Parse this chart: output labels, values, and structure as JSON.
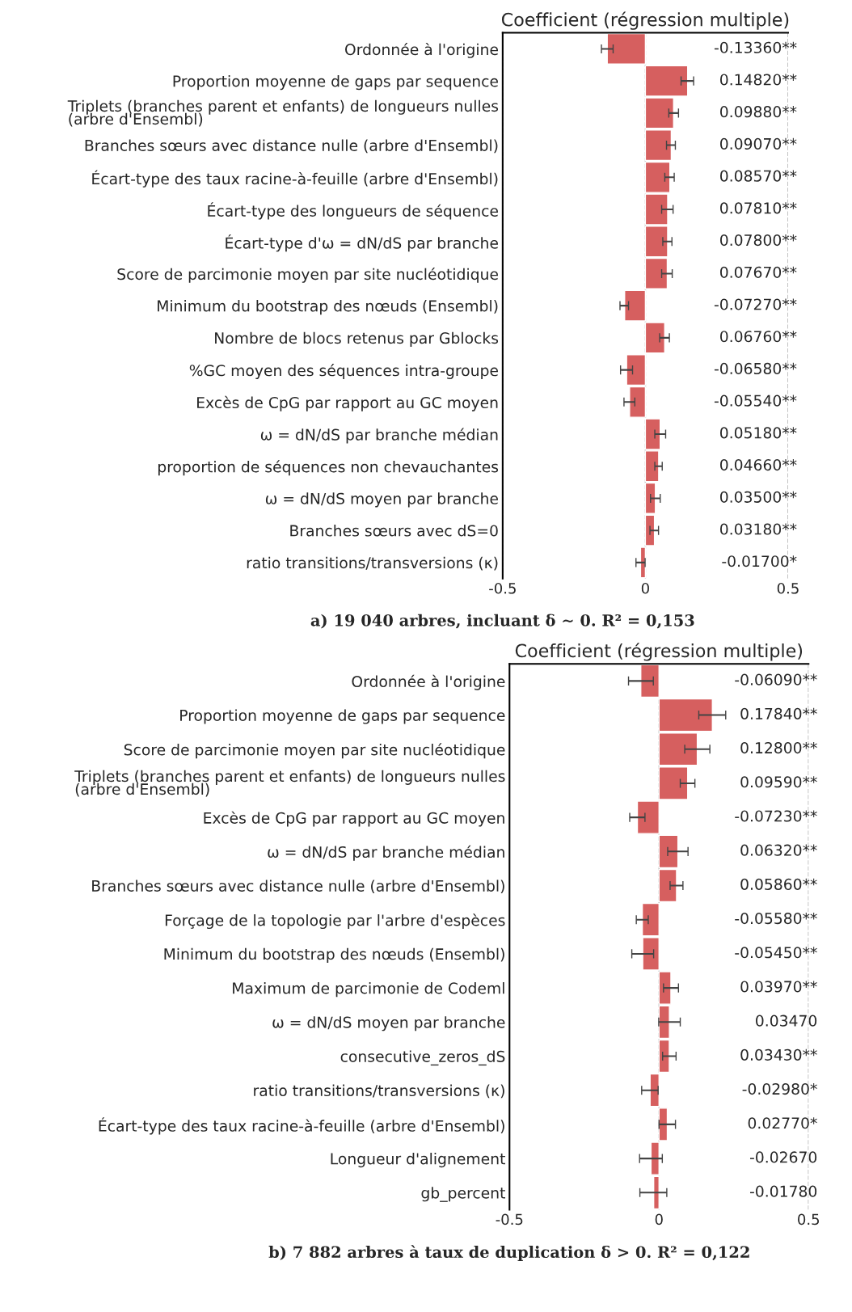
{
  "chart_data": [
    {
      "type": "bar",
      "orientation": "horizontal",
      "title": "Coefficient (régression multiple)",
      "annotations": [
        "a) 19 040 arbres, incluant δ ∼ 0. R² = 0,153"
      ],
      "categories": [
        "Ordonnée à l'origine",
        "Proportion moyenne de gaps par sequence",
        "Triplets (branches parent et enfants) de longueurs nulles\n(arbre d'Ensembl)",
        "Branches sœurs avec distance nulle (arbre d'Ensembl)",
        "Écart-type des taux racine-à-feuille (arbre d'Ensembl)",
        "Écart-type des longueurs de séquence",
        "Écart-type d'ω = dN/dS par branche",
        "Score de parcimonie moyen par site nucléotidique",
        "Minimum du bootstrap des nœuds (Ensembl)",
        "Nombre de blocs retenus par Gblocks",
        "%GC moyen des séquences intra-groupe",
        "Excès de CpG par rapport au GC moyen",
        "ω = dN/dS par branche médian",
        "proportion de séquences non chevauchantes",
        "ω = dN/dS moyen par branche",
        "Branches sœurs avec dS=0",
        "ratio transitions/transversions (κ)"
      ],
      "values": [
        -0.1336,
        0.1482,
        0.0988,
        0.0907,
        0.0857,
        0.0781,
        0.078,
        0.0767,
        -0.0727,
        0.0676,
        -0.0658,
        -0.0554,
        0.0518,
        0.0466,
        0.035,
        0.0318,
        -0.017
      ],
      "errors": [
        [
          -0.154,
          -0.113
        ],
        [
          0.125,
          0.169
        ],
        [
          0.082,
          0.116
        ],
        [
          0.074,
          0.105
        ],
        [
          0.068,
          0.101
        ],
        [
          0.057,
          0.097
        ],
        [
          0.061,
          0.093
        ],
        [
          0.057,
          0.094
        ],
        [
          -0.089,
          -0.059
        ],
        [
          0.05,
          0.084
        ],
        [
          -0.087,
          -0.045
        ],
        [
          -0.075,
          -0.037
        ],
        [
          0.033,
          0.071
        ],
        [
          0.033,
          0.059
        ],
        [
          0.018,
          0.052
        ],
        [
          0.016,
          0.046
        ],
        [
          -0.033,
          -0.001
        ]
      ],
      "value_labels": [
        "-0.13360**",
        "0.14820**",
        "0.09880**",
        "0.09070**",
        "0.08570**",
        "0.07810**",
        "0.07800**",
        "0.07670**",
        "-0.07270**",
        "0.06760**",
        "-0.06580**",
        "-0.05540**",
        "0.05180**",
        "0.04660**",
        "0.03500**",
        "0.03180**",
        "-0.01700*"
      ],
      "color": "#d65f5f",
      "xlim": [
        -0.5,
        0.5
      ],
      "xticks": [
        -0.5,
        0,
        0.5
      ],
      "grid": "x",
      "legend": false
    },
    {
      "type": "bar",
      "orientation": "horizontal",
      "title": "Coefficient (régression multiple)",
      "annotations": [
        "b) 7 882 arbres à taux de duplication δ > 0. R² = 0,122"
      ],
      "categories": [
        "Ordonnée à l'origine",
        "Proportion moyenne de gaps par sequence",
        "Score de parcimonie moyen par site nucléotidique",
        "Triplets (branches parent et enfants) de longueurs nulles\n(arbre d'Ensembl)",
        "Excès de CpG par rapport au GC moyen",
        "ω = dN/dS par branche médian",
        "Branches sœurs avec distance nulle (arbre d'Ensembl)",
        "Forçage de la topologie par l'arbre d'espèces",
        "Minimum du bootstrap des nœuds (Ensembl)",
        "Maximum de parcimonie de Codeml",
        "ω = dN/dS moyen par branche",
        "consecutive_zeros_dS",
        "ratio transitions/transversions (κ)",
        "Écart-type des taux racine-à-feuille (arbre d'Ensembl)",
        "Longueur d'alignement",
        "gb_percent"
      ],
      "values": [
        -0.0609,
        0.1784,
        0.128,
        0.0959,
        -0.0723,
        0.0632,
        0.0586,
        -0.0558,
        -0.0545,
        0.0397,
        0.0347,
        0.0343,
        -0.0298,
        0.0277,
        -0.0267,
        -0.0178
      ],
      "errors": [
        [
          -0.102,
          -0.019
        ],
        [
          0.133,
          0.223
        ],
        [
          0.086,
          0.17
        ],
        [
          0.071,
          0.12
        ],
        [
          -0.098,
          -0.047
        ],
        [
          0.029,
          0.097
        ],
        [
          0.037,
          0.08
        ],
        [
          -0.076,
          -0.036
        ],
        [
          -0.091,
          -0.018
        ],
        [
          0.015,
          0.065
        ],
        [
          -0.001,
          0.071
        ],
        [
          0.012,
          0.057
        ],
        [
          -0.058,
          -0.003
        ],
        [
          0.0,
          0.055
        ],
        [
          -0.065,
          0.011
        ],
        [
          -0.064,
          0.026
        ]
      ],
      "value_labels": [
        "-0.06090**",
        "0.17840**",
        "0.12800**",
        "0.09590**",
        "-0.07230**",
        "0.06320**",
        "0.05860**",
        "-0.05580**",
        "-0.05450**",
        "0.03970**",
        "0.03470",
        "0.03430**",
        "-0.02980*",
        "0.02770*",
        "-0.02670",
        "-0.01780"
      ],
      "color": "#d65f5f",
      "xlim": [
        -0.5,
        0.5
      ],
      "xticks": [
        -0.5,
        0,
        0.5
      ],
      "grid": "x",
      "legend": false
    }
  ]
}
